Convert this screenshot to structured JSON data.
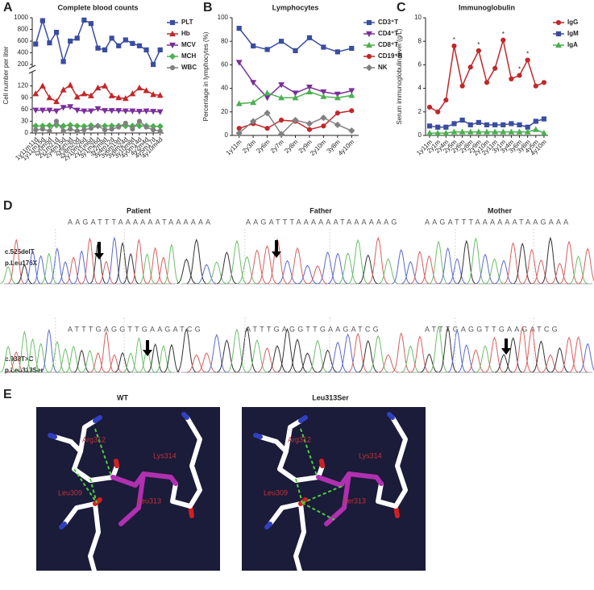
{
  "chart_data": [
    {
      "panel": "A",
      "type": "line",
      "title": "Complete blood counts",
      "ylabel": "Cell number per liter",
      "categories": [
        "1y11m11d",
        "1y11m15d",
        "2y0m5d",
        "2y1m21d",
        "2y4m15d",
        "2y6m3d",
        "2y8m20d",
        "2y10m26d",
        "2y11m6d",
        "3y1m26d",
        "3y2m8d",
        "3y4m12d",
        "3y6m19d",
        "3y8m24d",
        "3y10m8d",
        "4y0m14d",
        "4y2m4d",
        "4y5m17d",
        "4y10m4d"
      ],
      "ylim": [
        0,
        150
      ],
      "yticks": [
        0,
        30,
        60,
        90,
        120
      ],
      "y2lim": [
        200,
        1000
      ],
      "y2ticks": [
        200,
        400,
        600,
        800,
        1000
      ],
      "broken_axis": true,
      "series": [
        {
          "name": "PLT",
          "color": "#3a4d9f",
          "marker": "square",
          "axis": "y2",
          "values": [
            550,
            950,
            570,
            750,
            250,
            600,
            650,
            960,
            900,
            480,
            450,
            650,
            520,
            620,
            560,
            520,
            450,
            200,
            450
          ]
        },
        {
          "name": "Hb",
          "color": "#c0282b",
          "marker": "triangle",
          "values": [
            100,
            120,
            90,
            80,
            110,
            122,
            92,
            100,
            95,
            115,
            120,
            95,
            90,
            88,
            100,
            115,
            108,
            98,
            96
          ]
        },
        {
          "name": "MCV",
          "color": "#7a2f9a",
          "marker": "triangle-down",
          "values": [
            58,
            58,
            58,
            56,
            65,
            67,
            58,
            56,
            56,
            62,
            57,
            57,
            57,
            56,
            56,
            55,
            56,
            55,
            54
          ]
        },
        {
          "name": "MCH",
          "color": "#4caf50",
          "marker": "diamond",
          "values": [
            18,
            18,
            19,
            20,
            18,
            20,
            18,
            17,
            19,
            18,
            18,
            18,
            18,
            18,
            18,
            18,
            18,
            17,
            17
          ]
        },
        {
          "name": "WBC",
          "color": "#808080",
          "marker": "circle",
          "values": [
            8,
            10,
            5,
            30,
            5,
            10,
            5,
            8,
            12,
            18,
            8,
            10,
            15,
            25,
            10,
            30,
            15,
            8,
            5
          ]
        }
      ]
    },
    {
      "panel": "B",
      "type": "line",
      "title": "Lymphocytes",
      "ylabel": "Percentage in lymphocytes (%)",
      "categories": [
        "1y11m",
        "2y3m",
        "2y6m",
        "2y7m",
        "2y8m",
        "2y9m",
        "2y10m",
        "3y8m",
        "4y10m"
      ],
      "ylim": [
        0,
        100
      ],
      "yticks": [
        0,
        20,
        40,
        60,
        80,
        100
      ],
      "series": [
        {
          "name": "CD3⁺T",
          "color": "#3a4d9f",
          "marker": "square",
          "values": [
            91,
            76,
            73,
            80,
            72,
            83,
            75,
            71,
            74
          ]
        },
        {
          "name": "CD4⁺T",
          "color": "#7a2f9a",
          "marker": "triangle-down",
          "values": [
            62,
            45,
            32,
            43,
            36,
            41,
            37,
            35,
            38
          ]
        },
        {
          "name": "CD8⁺T",
          "color": "#4caf50",
          "marker": "triangle",
          "values": [
            27,
            28,
            36,
            32,
            32,
            37,
            33,
            32,
            34
          ]
        },
        {
          "name": "CD19⁺B",
          "color": "#c0282b",
          "marker": "circle",
          "values": [
            6,
            10,
            6,
            13,
            12,
            5,
            8,
            19,
            21
          ]
        },
        {
          "name": "NK",
          "color": "#808080",
          "marker": "diamond",
          "values": [
            2,
            12,
            19,
            1,
            13,
            10,
            15,
            9,
            4
          ]
        }
      ]
    },
    {
      "panel": "C",
      "type": "line",
      "title": "Immunoglobulin",
      "ylabel": "Serum immunoglobulin level (g/L)",
      "categories": [
        "1y11m",
        "2y1m",
        "2y4m",
        "2y5m",
        "2y6m",
        "2y8m",
        "2y9m",
        "2y10m",
        "2y11m",
        "3y1m",
        "3y4m",
        "3y6m",
        "3y8m",
        "4y5m",
        "4y10m"
      ],
      "ylim": [
        0,
        10
      ],
      "yticks": [
        0,
        2,
        4,
        6,
        8,
        10
      ],
      "series": [
        {
          "name": "IgG",
          "color": "#c0282b",
          "marker": "circle",
          "values": [
            2.4,
            2.0,
            3.0,
            7.6,
            4.2,
            5.8,
            7.2,
            4.5,
            5.7,
            8.1,
            4.8,
            5.1,
            6.4,
            4.2,
            4.5
          ],
          "annotations": [
            null,
            null,
            null,
            "*",
            null,
            null,
            "*",
            null,
            null,
            "*",
            null,
            "*",
            "*",
            null,
            null
          ]
        },
        {
          "name": "IgM",
          "color": "#3a4d9f",
          "marker": "square",
          "values": [
            0.8,
            0.7,
            0.7,
            1.0,
            1.3,
            0.9,
            1.1,
            0.9,
            0.9,
            0.9,
            1.0,
            0.9,
            0.7,
            1.2,
            1.4
          ]
        },
        {
          "name": "IgA",
          "color": "#4caf50",
          "marker": "triangle",
          "values": [
            0.2,
            0.2,
            0.2,
            0.3,
            0.3,
            0.3,
            0.3,
            0.3,
            0.3,
            0.3,
            0.3,
            0.3,
            0.3,
            0.5,
            0.2
          ]
        }
      ]
    }
  ],
  "sequencing": {
    "panel": "D",
    "columns": [
      {
        "title": "Patient",
        "sequence_1": "AAGATTTAAAAAATAAAAAA",
        "sequence_2": "ATTTGAGGTTGAAGATCG"
      },
      {
        "title": "Father",
        "sequence_1": "AAGATTTAAAAAATAAAAAAG",
        "sequence_2": "ATTTGAGGTTGAAGATCG"
      },
      {
        "title": "Mother",
        "sequence_1": "AAGATTTAAAAAATAAGAAA",
        "sequence_2": "ATTTGAGGTTGAAGATCG"
      }
    ],
    "mutations": [
      {
        "cdna": "c.525delT",
        "protein": "p.Leu176X"
      },
      {
        "cdna": "c.938T>C",
        "protein": "p.Leu313Ser"
      }
    ]
  },
  "structures": {
    "panel": "E",
    "models": [
      {
        "title": "WT",
        "residues": [
          "Arg312",
          "Lys314",
          "Leu309",
          "Leu313"
        ]
      },
      {
        "title": "Leu313Ser",
        "residues": [
          "Arg312",
          "Lys314",
          "Leu309",
          "Ser313"
        ]
      }
    ]
  }
}
